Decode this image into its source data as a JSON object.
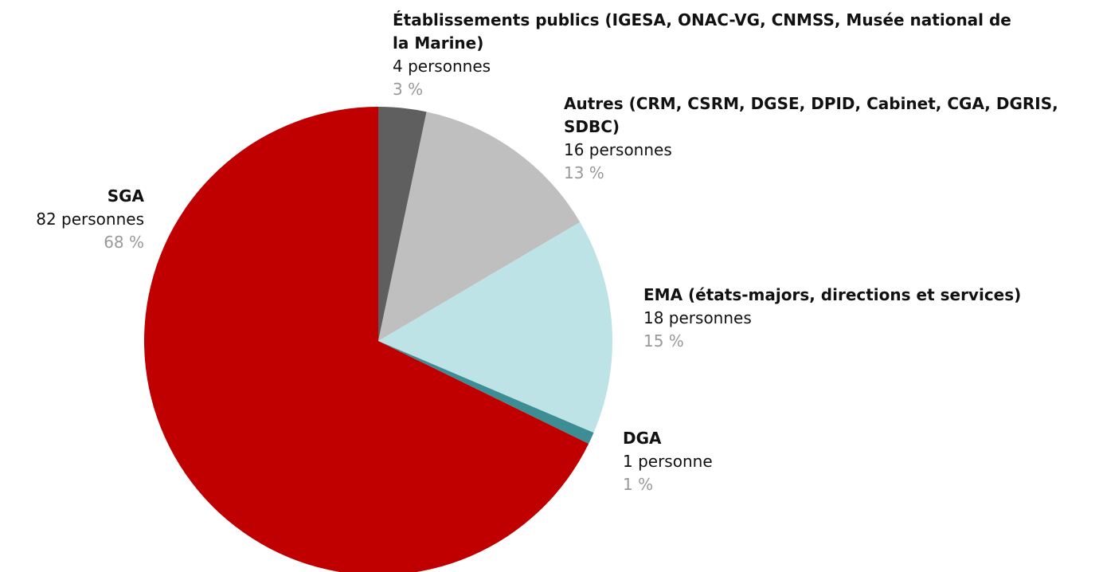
{
  "chart_data": {
    "type": "pie",
    "categories": [
      "Établissements publics (IGESA, ONAC-VG, CNMSS, Musée national de la Marine)",
      "Autres (CRM, CSRM, DGSE, DPID, Cabinet, CGA, DGRIS, SDBC)",
      "EMA (états-majors, directions et services)",
      "DGA",
      "SGA"
    ],
    "values": [
      4,
      16,
      18,
      1,
      82
    ],
    "value_labels": [
      "4 personnes",
      "16 personnes",
      "18 personnes",
      "1 personne",
      "82 personnes"
    ],
    "percents": [
      3,
      13,
      15,
      1,
      68
    ],
    "percent_labels": [
      "3 %",
      "13 %",
      "15 %",
      "1 %",
      "68 %"
    ],
    "colors": [
      "#5f5f5f",
      "#bfbfbf",
      "#bde3e6",
      "#3d8e94",
      "#c00000"
    ]
  }
}
